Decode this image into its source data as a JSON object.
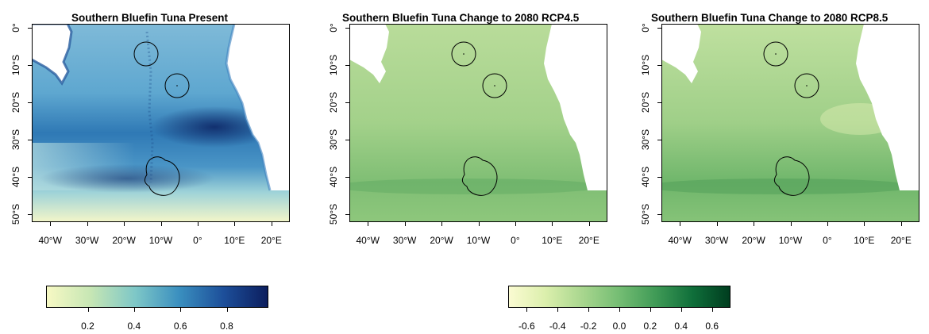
{
  "panels": [
    {
      "title": "Southern Bluefin Tuna Present"
    },
    {
      "title": "Southern Bluefin Tuna Change to 2080 RCP4.5"
    },
    {
      "title": "Southern Bluefin Tuna Change to 2080 RCP8.5"
    }
  ],
  "axes": {
    "lat_ticks": [
      "0°",
      "10°S",
      "20°S",
      "30°S",
      "40°S",
      "50°S"
    ],
    "lon_ticks": [
      "40°W",
      "30°W",
      "20°W",
      "10°W",
      "0°",
      "10°E",
      "20°E"
    ]
  },
  "legends": [
    {
      "ticks": [
        "0.2",
        "0.4",
        "0.6",
        "0.8"
      ],
      "colors": [
        "#f7f9c4",
        "#c6e6b4",
        "#7ec7c7",
        "#3a8fbf",
        "#1d4f9a",
        "#0c1e5e"
      ]
    },
    {
      "ticks": [
        "-0.6",
        "-0.4",
        "-0.2",
        "0.0",
        "0.2",
        "0.4",
        "0.6"
      ],
      "colors": [
        "#fbfbd2",
        "#dbefac",
        "#a8d68e",
        "#74bd73",
        "#3f9a56",
        "#0f6e3a",
        "#003d1f"
      ]
    }
  ],
  "colors": {
    "present_ocean": "#4f9dcb",
    "change_ocean": "#a8d68e",
    "land": "#ffffff"
  }
}
